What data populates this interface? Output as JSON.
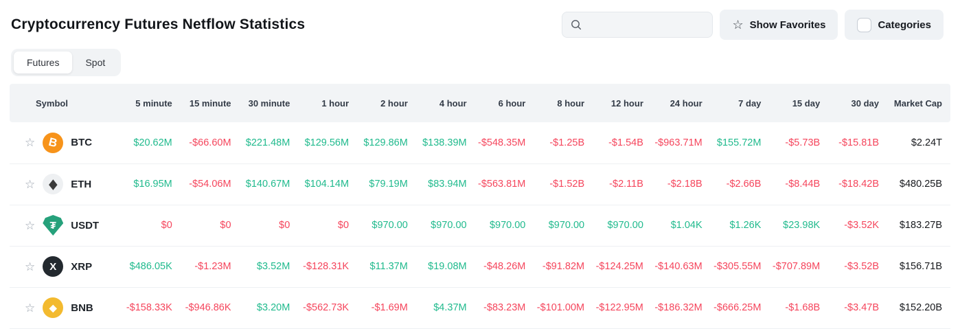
{
  "header": {
    "title": "Cryptocurrency Futures Netflow Statistics",
    "search": {
      "placeholder": "",
      "value": ""
    },
    "show_favorites": "Show Favorites",
    "categories": "Categories"
  },
  "tabs": {
    "items": [
      {
        "label": "Futures",
        "active": true
      },
      {
        "label": "Spot",
        "active": false
      }
    ]
  },
  "colors": {
    "positive": "#20BA8D",
    "negative": "#F5455C"
  },
  "table": {
    "columns": [
      "Symbol",
      "5 minute",
      "15 minute",
      "30 minute",
      "1 hour",
      "2 hour",
      "4 hour",
      "6 hour",
      "8 hour",
      "12 hour",
      "24 hour",
      "7 day",
      "15 day",
      "30 day",
      "Market Cap"
    ],
    "rows": [
      {
        "symbol": "BTC",
        "icon": {
          "name": "btc-coin-icon",
          "bg": "#F7931A",
          "fg": "#FFFFFF",
          "glyph": "B",
          "shape": "circle",
          "tilt": 14,
          "glyph_size": 17
        },
        "cells": [
          {
            "text": "$20.62M",
            "color": "pos"
          },
          {
            "text": "-$66.60M",
            "color": "neg"
          },
          {
            "text": "$221.48M",
            "color": "pos"
          },
          {
            "text": "$129.56M",
            "color": "pos"
          },
          {
            "text": "$129.86M",
            "color": "pos"
          },
          {
            "text": "$138.39M",
            "color": "pos"
          },
          {
            "text": "-$548.35M",
            "color": "neg"
          },
          {
            "text": "-$1.25B",
            "color": "neg"
          },
          {
            "text": "-$1.54B",
            "color": "neg"
          },
          {
            "text": "-$963.71M",
            "color": "neg"
          },
          {
            "text": "$155.72M",
            "color": "pos"
          },
          {
            "text": "-$5.73B",
            "color": "neg"
          },
          {
            "text": "-$15.81B",
            "color": "neg"
          },
          {
            "text": "$2.24T",
            "color": "cap"
          }
        ]
      },
      {
        "symbol": "ETH",
        "icon": {
          "name": "eth-coin-icon",
          "bg": "#EEF0F2",
          "fg": "#3A3A3A",
          "glyph": "◆",
          "shape": "circle",
          "tilt": 0,
          "glyph_size": 15,
          "stretch": true
        },
        "cells": [
          {
            "text": "$16.95M",
            "color": "pos"
          },
          {
            "text": "-$54.06M",
            "color": "neg"
          },
          {
            "text": "$140.67M",
            "color": "pos"
          },
          {
            "text": "$104.14M",
            "color": "pos"
          },
          {
            "text": "$79.19M",
            "color": "pos"
          },
          {
            "text": "$83.94M",
            "color": "pos"
          },
          {
            "text": "-$563.81M",
            "color": "neg"
          },
          {
            "text": "-$1.52B",
            "color": "neg"
          },
          {
            "text": "-$2.11B",
            "color": "neg"
          },
          {
            "text": "-$2.18B",
            "color": "neg"
          },
          {
            "text": "-$2.66B",
            "color": "neg"
          },
          {
            "text": "-$8.44B",
            "color": "neg"
          },
          {
            "text": "-$18.42B",
            "color": "neg"
          },
          {
            "text": "$480.25B",
            "color": "cap"
          }
        ]
      },
      {
        "symbol": "USDT",
        "icon": {
          "name": "usdt-coin-icon",
          "bg": "#26A17B",
          "fg": "#FFFFFF",
          "glyph": "₮",
          "shape": "shield",
          "tilt": 0,
          "glyph_size": 15
        },
        "cells": [
          {
            "text": "$0",
            "color": "neg"
          },
          {
            "text": "$0",
            "color": "neg"
          },
          {
            "text": "$0",
            "color": "neg"
          },
          {
            "text": "$0",
            "color": "neg"
          },
          {
            "text": "$970.00",
            "color": "pos"
          },
          {
            "text": "$970.00",
            "color": "pos"
          },
          {
            "text": "$970.00",
            "color": "pos"
          },
          {
            "text": "$970.00",
            "color": "pos"
          },
          {
            "text": "$970.00",
            "color": "pos"
          },
          {
            "text": "$1.04K",
            "color": "pos"
          },
          {
            "text": "$1.26K",
            "color": "pos"
          },
          {
            "text": "$23.98K",
            "color": "pos"
          },
          {
            "text": "-$3.52K",
            "color": "neg"
          },
          {
            "text": "$183.27B",
            "color": "cap"
          }
        ]
      },
      {
        "symbol": "XRP",
        "icon": {
          "name": "xrp-coin-icon",
          "bg": "#23292F",
          "fg": "#FFFFFF",
          "glyph": "X",
          "shape": "circle",
          "tilt": 0,
          "glyph_size": 15
        },
        "cells": [
          {
            "text": "$486.05K",
            "color": "pos"
          },
          {
            "text": "-$1.23M",
            "color": "neg"
          },
          {
            "text": "$3.52M",
            "color": "pos"
          },
          {
            "text": "-$128.31K",
            "color": "neg"
          },
          {
            "text": "$11.37M",
            "color": "pos"
          },
          {
            "text": "$19.08M",
            "color": "pos"
          },
          {
            "text": "-$48.26M",
            "color": "neg"
          },
          {
            "text": "-$91.82M",
            "color": "neg"
          },
          {
            "text": "-$124.25M",
            "color": "neg"
          },
          {
            "text": "-$140.63M",
            "color": "neg"
          },
          {
            "text": "-$305.55M",
            "color": "neg"
          },
          {
            "text": "-$707.89M",
            "color": "neg"
          },
          {
            "text": "-$3.52B",
            "color": "neg"
          },
          {
            "text": "$156.71B",
            "color": "cap"
          }
        ]
      },
      {
        "symbol": "BNB",
        "icon": {
          "name": "bnb-coin-icon",
          "bg": "#F3BA2F",
          "fg": "#FFFFFF",
          "glyph": "◆",
          "shape": "circle",
          "tilt": 0,
          "glyph_size": 14
        },
        "cells": [
          {
            "text": "-$158.33K",
            "color": "neg"
          },
          {
            "text": "-$946.86K",
            "color": "neg"
          },
          {
            "text": "$3.20M",
            "color": "pos"
          },
          {
            "text": "-$562.73K",
            "color": "neg"
          },
          {
            "text": "-$1.69M",
            "color": "neg"
          },
          {
            "text": "$4.37M",
            "color": "pos"
          },
          {
            "text": "-$83.23M",
            "color": "neg"
          },
          {
            "text": "-$101.00M",
            "color": "neg"
          },
          {
            "text": "-$122.95M",
            "color": "neg"
          },
          {
            "text": "-$186.32M",
            "color": "neg"
          },
          {
            "text": "-$666.25M",
            "color": "neg"
          },
          {
            "text": "-$1.68B",
            "color": "neg"
          },
          {
            "text": "-$3.47B",
            "color": "neg"
          },
          {
            "text": "$152.20B",
            "color": "cap"
          }
        ]
      }
    ]
  }
}
